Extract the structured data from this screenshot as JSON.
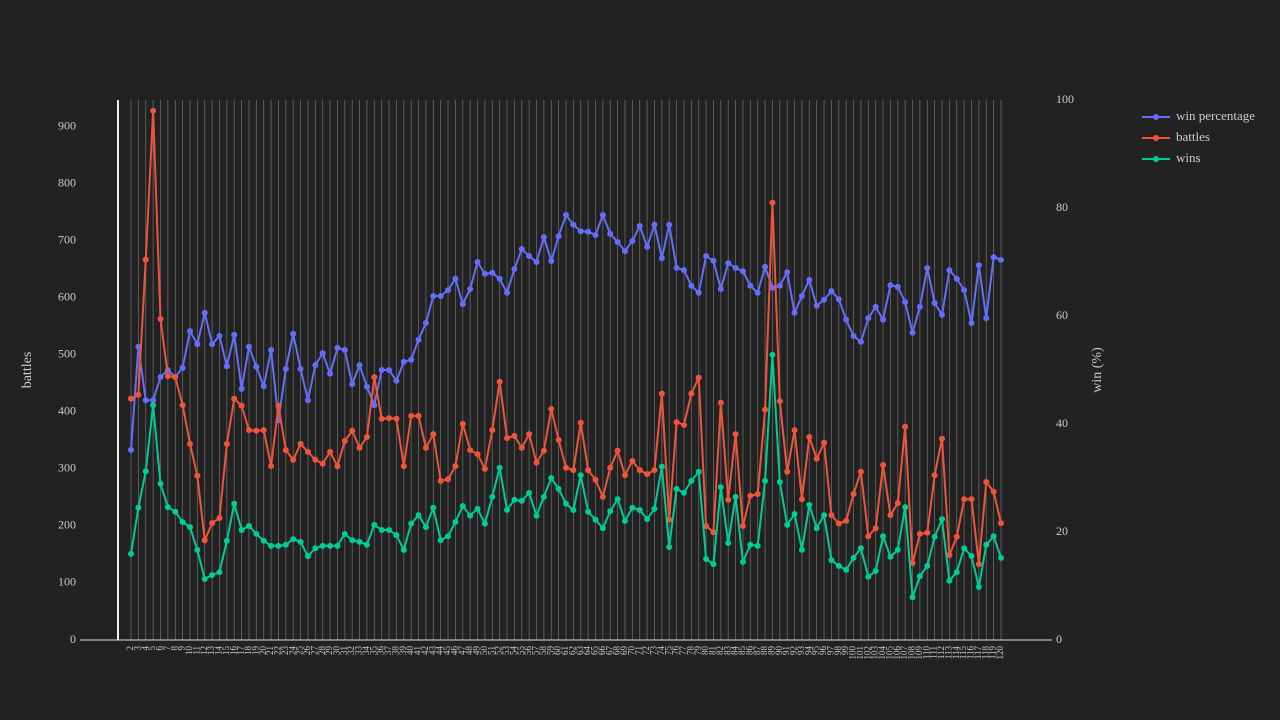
{
  "chart_data": {
    "type": "line",
    "y_label": "battles",
    "y2_label": "win (%)",
    "categories": [
      "2",
      "3",
      "4",
      "5",
      "6",
      "7",
      "8",
      "9",
      "10",
      "11",
      "12",
      "13",
      "14",
      "15",
      "16",
      "17",
      "18",
      "19",
      "20",
      "21",
      "22",
      "23",
      "24",
      "25",
      "26",
      "27",
      "28",
      "29",
      "30",
      "31",
      "32",
      "33",
      "34",
      "35",
      "36",
      "37",
      "38",
      "39",
      "40",
      "41",
      "42",
      "43",
      "44",
      "45",
      "46",
      "47",
      "48",
      "49",
      "50",
      "51",
      "52",
      "53",
      "54",
      "55",
      "56",
      "57",
      "58",
      "59",
      "60",
      "61",
      "62",
      "63",
      "64",
      "65",
      "66",
      "67",
      "68",
      "69",
      "70",
      "71",
      "72",
      "73",
      "74",
      "75",
      "76",
      "77",
      "78",
      "79",
      "80",
      "81",
      "82",
      "83",
      "84",
      "85",
      "86",
      "87",
      "88",
      "89",
      "90",
      "91",
      "92",
      "93",
      "94",
      "95",
      "96",
      "97",
      "98",
      "99",
      "100",
      "101",
      "102",
      "103",
      "104",
      "105",
      "106",
      "107",
      "108",
      "109",
      "110",
      "111",
      "112",
      "113",
      "114",
      "115",
      "116",
      "117",
      "118",
      "119",
      "120"
    ],
    "series": [
      {
        "name": "win percentage",
        "color": "#636efa",
        "axis": "y2",
        "values": [
          35.2,
          54.3,
          44.4,
          44.4,
          48.7,
          50,
          48.7,
          50.4,
          57.2,
          54.8,
          60.6,
          54.8,
          56.3,
          50.7,
          56.5,
          46.5,
          54.3,
          50.6,
          47,
          53.7,
          40.7,
          50.2,
          56.7,
          50.2,
          44.4,
          50.9,
          53.1,
          49.3,
          54.1,
          53.7,
          47.4,
          50.9,
          46.9,
          43.5,
          50,
          50,
          48,
          51.5,
          51.9,
          55.6,
          58.7,
          63.7,
          63.7,
          64.8,
          66.9,
          62.2,
          65,
          70,
          67.8,
          68,
          66.9,
          64.3,
          68.7,
          72.4,
          71.1,
          70,
          74.6,
          70.2,
          74.8,
          78.7,
          76.9,
          75.7,
          75.6,
          75,
          78.7,
          75.2,
          73.7,
          72,
          73.9,
          76.7,
          72.8,
          76.9,
          70.7,
          76.9,
          68.9,
          68.5,
          65.6,
          64.3,
          71.1,
          70.2,
          65,
          69.8,
          68.9,
          68.3,
          65.6,
          64.3,
          69.1,
          65.2,
          65.6,
          68.1,
          60.6,
          63.7,
          66.7,
          61.9,
          63,
          64.6,
          63.1,
          59.3,
          56.3,
          55.2,
          59.6,
          61.7,
          59.3,
          65.7,
          65.4,
          62.6,
          56.9,
          61.7,
          68.9,
          62.4,
          60.2,
          68.5,
          66.9,
          64.8,
          58.7,
          69.4,
          59.6,
          70.9,
          70.4
        ]
      },
      {
        "name": "battles",
        "color": "#EF553B",
        "values": [
          423,
          430,
          667,
          928,
          563,
          463,
          461,
          412,
          344,
          288,
          175,
          205,
          214,
          344,
          423,
          411,
          368,
          367,
          368,
          305,
          411,
          333,
          316,
          344,
          330,
          316,
          309,
          330,
          305,
          349,
          367,
          337,
          356,
          461,
          388,
          389,
          388,
          305,
          393,
          393,
          337,
          361,
          279,
          282,
          305,
          379,
          333,
          326,
          300,
          368,
          453,
          354,
          358,
          337,
          361,
          311,
          332,
          405,
          351,
          302,
          298,
          381,
          298,
          281,
          251,
          302,
          332,
          289,
          314,
          298,
          291,
          298,
          432,
          211,
          382,
          377,
          432,
          460,
          200,
          189,
          416,
          246,
          361,
          200,
          253,
          256,
          404,
          767,
          419,
          295,
          368,
          247,
          356,
          318,
          346,
          219,
          204,
          209,
          256,
          295,
          182,
          196,
          307,
          219,
          240,
          374,
          135,
          186,
          188,
          289,
          353,
          149,
          181,
          247,
          247,
          133,
          277,
          260,
          205
        ]
      },
      {
        "name": "wins",
        "color": "#00cc96",
        "values": [
          151,
          232,
          296,
          412,
          274,
          233,
          225,
          207,
          198,
          158,
          107,
          114,
          119,
          174,
          239,
          193,
          200,
          186,
          174,
          165,
          165,
          167,
          177,
          172,
          147,
          161,
          165,
          165,
          165,
          186,
          175,
          172,
          167,
          202,
          193,
          193,
          184,
          158,
          204,
          219,
          198,
          232,
          175,
          182,
          207,
          235,
          218,
          230,
          204,
          251,
          302,
          228,
          246,
          244,
          258,
          218,
          251,
          284,
          265,
          239,
          228,
          289,
          225,
          211,
          196,
          226,
          247,
          209,
          232,
          228,
          212,
          230,
          304,
          163,
          265,
          258,
          279,
          295,
          142,
          133,
          268,
          170,
          251,
          137,
          167,
          165,
          279,
          500,
          277,
          202,
          221,
          158,
          237,
          196,
          219,
          140,
          130,
          123,
          144,
          161,
          111,
          121,
          182,
          146,
          158,
          233,
          75,
          112,
          130,
          181,
          212,
          104,
          119,
          161,
          147,
          93,
          167,
          182,
          144
        ]
      }
    ],
    "ylim": [
      0,
      947
    ],
    "yticks": [
      0,
      100,
      200,
      300,
      400,
      500,
      600,
      700,
      800,
      900
    ],
    "y2lim": [
      0,
      100
    ],
    "y2ticks": [
      0,
      20,
      40,
      60,
      80,
      100
    ],
    "grid": true,
    "legend": "top-right"
  }
}
